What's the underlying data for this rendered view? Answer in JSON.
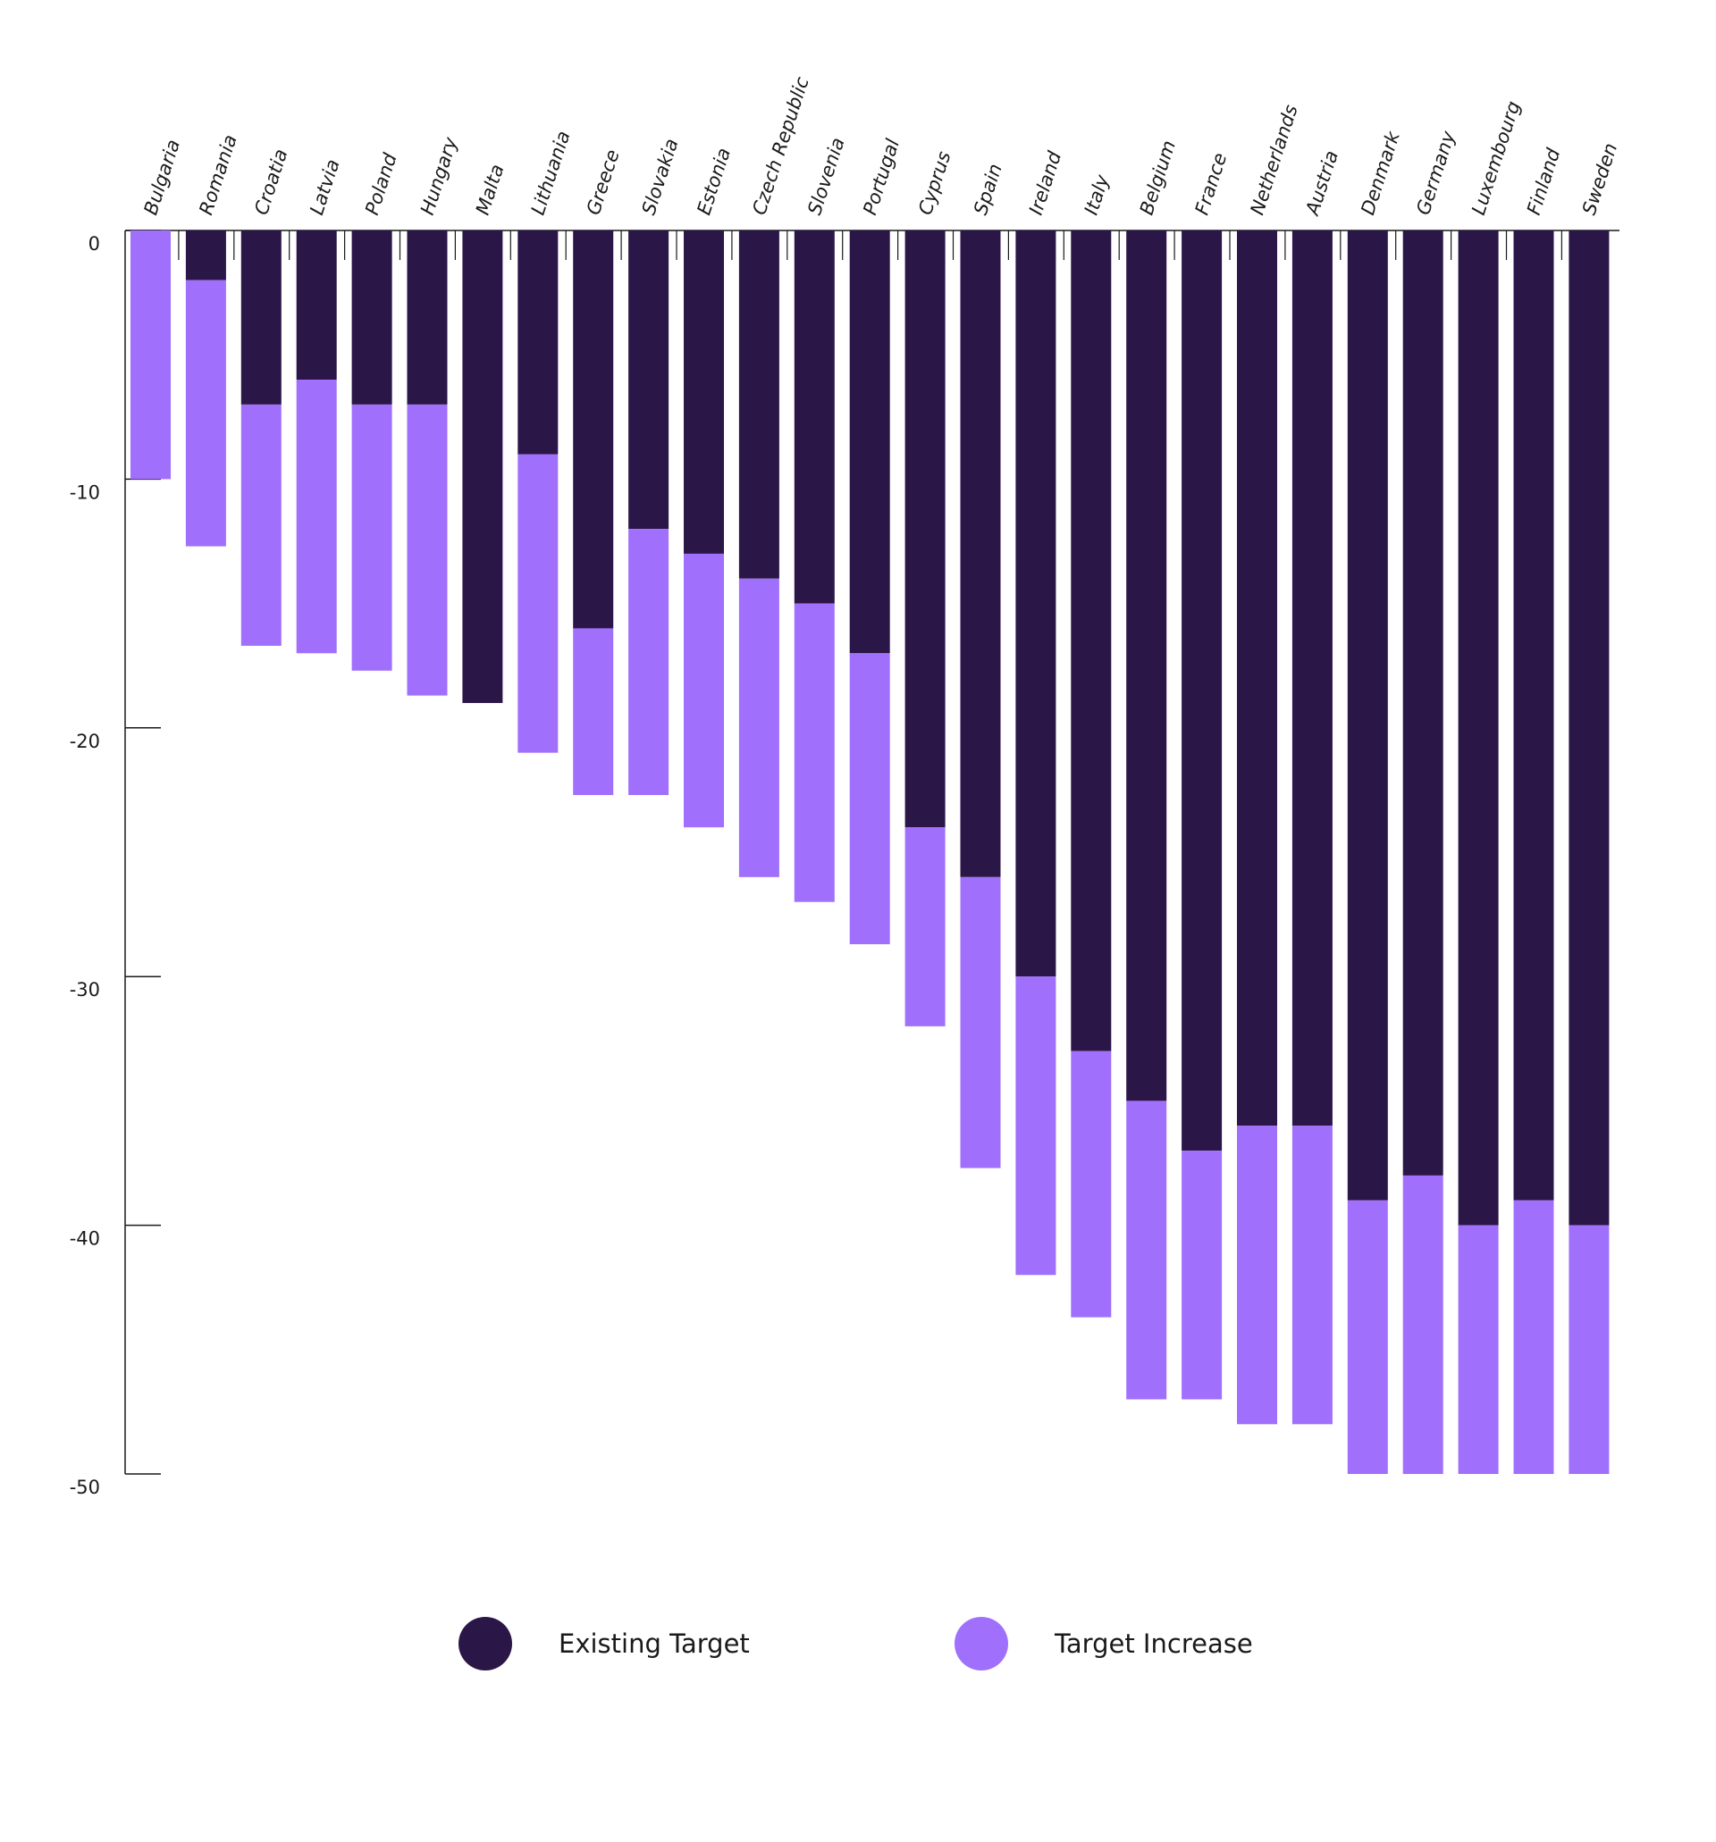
{
  "chart_data": {
    "type": "bar",
    "stacked": true,
    "orientation": "vertical-downward",
    "title": "",
    "xlabel": "",
    "ylabel": "",
    "ylim": [
      -50,
      0
    ],
    "yticks": [
      0,
      -10,
      -20,
      -30,
      -40,
      -50
    ],
    "categories": [
      "Bulgaria",
      "Romania",
      "Croatia",
      "Latvia",
      "Poland",
      "Hungary",
      "Malta",
      "Lithuania",
      "Greece",
      "Slovakia",
      "Estonia",
      "Czech Republic",
      "Slovenia",
      "Portugal",
      "Cyprus",
      "Spain",
      "Ireland",
      "Italy",
      "Belgium",
      "France",
      "Netherlands",
      "Austria",
      "Denmark",
      "Germany",
      "Luxembourg",
      "Finland",
      "Sweden"
    ],
    "series": [
      {
        "name": "Existing Target",
        "color": "#2b1648",
        "values": [
          0,
          -2,
          -7,
          -6,
          -7,
          -7,
          -19,
          -9,
          -16,
          -12,
          -13,
          -14,
          -15,
          -17,
          -24,
          -26,
          -30,
          -33,
          -35,
          -37,
          -36,
          -36,
          -39,
          -38,
          -40,
          -39,
          -40
        ]
      },
      {
        "name": "Target Increase",
        "color": "#a070fd",
        "values": [
          -10,
          -10.7,
          -9.7,
          -11,
          -10.7,
          -11.7,
          0,
          -12,
          -6.7,
          -10.7,
          -11,
          -12,
          -12,
          -11.7,
          -8,
          -11.7,
          -12,
          -10.7,
          -12,
          -10,
          -12,
          -12,
          -11,
          -12,
          -10,
          -11,
          -10
        ]
      }
    ],
    "legend": {
      "position": "bottom-center",
      "items": [
        {
          "label": "Existing Target",
          "color": "#2b1648"
        },
        {
          "label": "Target Increase",
          "color": "#a070fd"
        }
      ]
    }
  }
}
